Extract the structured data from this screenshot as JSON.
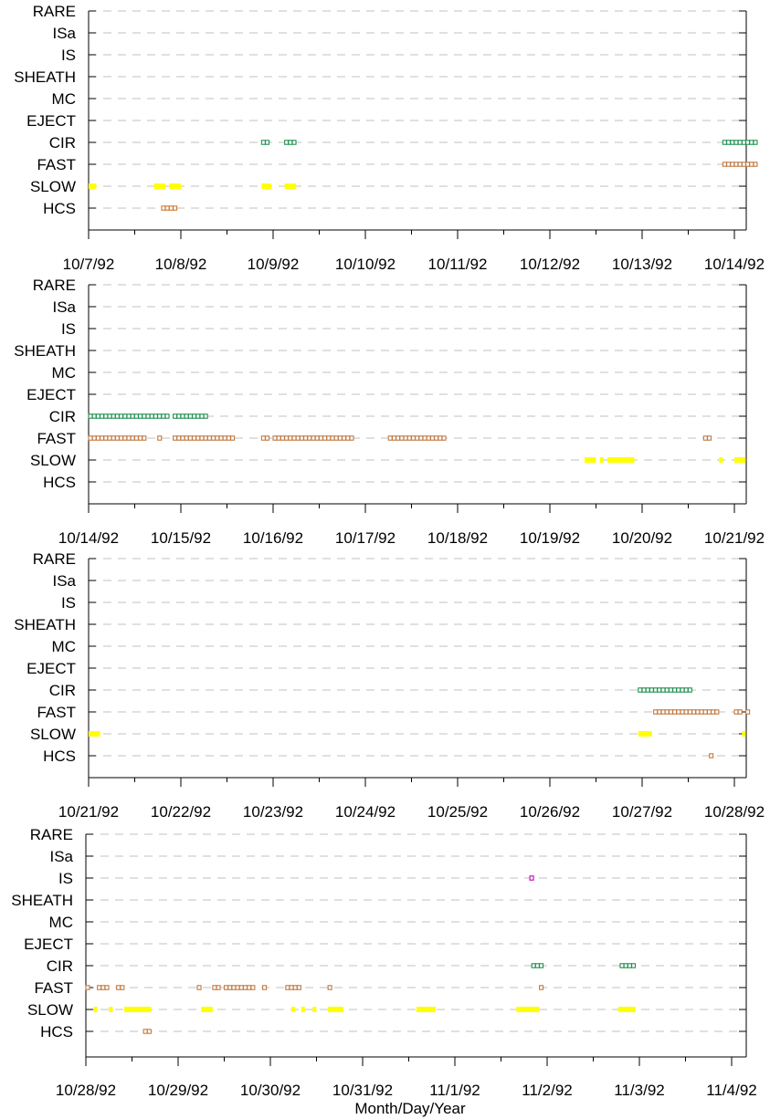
{
  "colors": {
    "SLOW": "#ffff00",
    "FAST": "#c07840",
    "CIR": "#209050",
    "HCS": "#d07830",
    "IS": "#c000c0",
    "grid": "#c0c0c0",
    "axis": "#000000"
  },
  "chart_data": [
    {
      "type": "scatter",
      "xlabel": "",
      "categories": [
        "RARE",
        "ISa",
        "IS",
        "SHEATH",
        "MC",
        "EJECT",
        "CIR",
        "FAST",
        "SLOW",
        "HCS"
      ],
      "x_range": [
        "10/7/92",
        "10/14/92 06:00"
      ],
      "x_ticks": [
        "10/7/92",
        "10/8/92",
        "10/9/92",
        "10/10/92",
        "10/11/92",
        "10/12/92",
        "10/13/92",
        "10/14/92"
      ],
      "grid": "horizontal dashed",
      "series": [
        {
          "category": "CIR",
          "style": "marker",
          "intervals": [
            [
              "10/8/92 21:00",
              "10/8/92 23:00"
            ],
            [
              "10/9/92 03:00",
              "10/9/92 05:30"
            ],
            [
              "10/13/92 21:00",
              "10/14/92 06:00"
            ]
          ]
        },
        {
          "category": "FAST",
          "style": "marker",
          "intervals": [
            [
              "10/13/92 21:00",
              "10/14/92 06:00"
            ]
          ]
        },
        {
          "category": "SLOW",
          "style": "bar",
          "intervals": [
            [
              "10/7/92 00:00",
              "10/7/92 02:00"
            ],
            [
              "10/7/92 17:00",
              "10/7/92 20:00"
            ],
            [
              "10/7/92 21:00",
              "10/8/92 00:00"
            ],
            [
              "10/8/92 21:00",
              "10/8/92 23:30"
            ],
            [
              "10/9/92 03:00",
              "10/9/92 06:00"
            ]
          ]
        },
        {
          "category": "HCS",
          "style": "marker",
          "intervals": [
            [
              "10/7/92 19:00",
              "10/7/92 22:30"
            ]
          ]
        }
      ]
    },
    {
      "type": "scatter",
      "xlabel": "",
      "categories": [
        "RARE",
        "ISa",
        "IS",
        "SHEATH",
        "MC",
        "EJECT",
        "CIR",
        "FAST",
        "SLOW",
        "HCS"
      ],
      "x_range": [
        "10/14/92",
        "10/21/92 04:00"
      ],
      "x_ticks": [
        "10/14/92",
        "10/15/92",
        "10/16/92",
        "10/17/92",
        "10/18/92",
        "10/19/92",
        "10/20/92",
        "10/21/92"
      ],
      "grid": "horizontal dashed",
      "series": [
        {
          "category": "CIR",
          "style": "marker",
          "intervals": [
            [
              "10/14/92 00:00",
              "10/14/92 21:00"
            ],
            [
              "10/14/92 22:00",
              "10/15/92 07:00"
            ]
          ]
        },
        {
          "category": "FAST",
          "style": "marker",
          "intervals": [
            [
              "10/14/92 00:00",
              "10/14/92 15:00"
            ],
            [
              "10/14/92 18:00",
              "10/14/92 19:00"
            ],
            [
              "10/14/92 22:00",
              "10/15/92 14:00"
            ],
            [
              "10/15/92 21:00",
              "10/15/92 23:00"
            ],
            [
              "10/16/92 00:00",
              "10/16/92 21:00"
            ],
            [
              "10/17/92 06:00",
              "10/17/92 21:00"
            ],
            [
              "10/20/92 16:00",
              "10/20/92 18:00"
            ]
          ]
        },
        {
          "category": "SLOW",
          "style": "bar",
          "intervals": [
            [
              "10/19/92 09:00",
              "10/19/92 12:00"
            ],
            [
              "10/19/92 13:00",
              "10/19/92 14:00"
            ],
            [
              "10/19/92 15:00",
              "10/19/92 22:00"
            ],
            [
              "10/20/92 20:00",
              "10/20/92 21:00"
            ],
            [
              "10/21/92 00:00",
              "10/21/92 03:00"
            ]
          ]
        }
      ]
    },
    {
      "type": "scatter",
      "xlabel": "",
      "categories": [
        "RARE",
        "ISa",
        "IS",
        "SHEATH",
        "MC",
        "EJECT",
        "CIR",
        "FAST",
        "SLOW",
        "HCS"
      ],
      "x_range": [
        "10/21/92",
        "10/28/92 04:00"
      ],
      "x_ticks": [
        "10/21/92",
        "10/22/92",
        "10/23/92",
        "10/24/92",
        "10/25/92",
        "10/26/92",
        "10/27/92",
        "10/28/92"
      ],
      "grid": "horizontal dashed",
      "series": [
        {
          "category": "CIR",
          "style": "marker",
          "intervals": [
            [
              "10/26/92 23:00",
              "10/27/92 13:00"
            ]
          ]
        },
        {
          "category": "FAST",
          "style": "marker",
          "intervals": [
            [
              "10/27/92 03:00",
              "10/27/92 20:00"
            ],
            [
              "10/28/92 00:00",
              "10/28/92 02:00"
            ],
            [
              "10/28/92 03:00",
              "10/28/92 04:00"
            ]
          ]
        },
        {
          "category": "SLOW",
          "style": "bar",
          "intervals": [
            [
              "10/21/92 00:00",
              "10/21/92 03:00"
            ],
            [
              "10/26/92 23:00",
              "10/27/92 02:30"
            ],
            [
              "10/28/92 02:00",
              "10/28/92 03:00"
            ]
          ]
        },
        {
          "category": "HCS",
          "style": "marker",
          "intervals": [
            [
              "10/27/92 17:30",
              "10/27/92 18:30"
            ]
          ]
        }
      ]
    },
    {
      "type": "scatter",
      "xlabel": "Month/Day/Year",
      "categories": [
        "RARE",
        "ISa",
        "IS",
        "SHEATH",
        "MC",
        "EJECT",
        "CIR",
        "FAST",
        "SLOW",
        "HCS"
      ],
      "x_range": [
        "10/28/92",
        "11/4/92 04:00"
      ],
      "x_ticks": [
        "10/28/92",
        "10/29/92",
        "10/30/92",
        "10/31/92",
        "11/1/92",
        "11/2/92",
        "11/3/92",
        "11/4/92"
      ],
      "grid": "horizontal dashed",
      "series": [
        {
          "category": "IS",
          "style": "marker",
          "intervals": [
            [
              "11/1/92 19:30",
              "11/1/92 20:30"
            ]
          ]
        },
        {
          "category": "CIR",
          "style": "marker",
          "intervals": [
            [
              "11/1/92 20:00",
              "11/1/92 23:00"
            ],
            [
              "11/2/92 19:00",
              "11/2/92 23:00"
            ]
          ]
        },
        {
          "category": "FAST",
          "style": "marker",
          "intervals": [
            [
              "10/28/92 00:00",
              "10/28/92 01:00"
            ],
            [
              "10/28/92 03:00",
              "10/28/92 06:00"
            ],
            [
              "10/28/92 08:00",
              "10/28/92 10:00"
            ],
            [
              "10/29/92 05:00",
              "10/29/92 06:00"
            ],
            [
              "10/29/92 09:00",
              "10/29/92 11:00"
            ],
            [
              "10/29/92 12:00",
              "10/29/92 20:00"
            ],
            [
              "10/29/92 22:00",
              "10/29/92 23:00"
            ],
            [
              "10/30/92 04:00",
              "10/30/92 08:00"
            ],
            [
              "10/30/92 15:00",
              "10/30/92 16:00"
            ],
            [
              "11/1/92 22:00",
              "11/1/92 23:00"
            ]
          ]
        },
        {
          "category": "SLOW",
          "style": "bar",
          "intervals": [
            [
              "10/28/92 02:00",
              "10/28/92 03:00"
            ],
            [
              "10/28/92 06:00",
              "10/28/92 07:00"
            ],
            [
              "10/28/92 10:00",
              "10/28/92 17:00"
            ],
            [
              "10/29/92 06:00",
              "10/29/92 09:00"
            ],
            [
              "10/30/92 05:30",
              "10/30/92 06:30"
            ],
            [
              "10/30/92 08:00",
              "10/30/92 09:00"
            ],
            [
              "10/30/92 11:00",
              "10/30/92 12:00"
            ],
            [
              "10/30/92 15:00",
              "10/30/92 19:00"
            ],
            [
              "10/31/92 14:00",
              "10/31/92 19:00"
            ],
            [
              "11/1/92 16:00",
              "11/1/92 22:00"
            ],
            [
              "11/2/92 18:30",
              "11/2/92 23:00"
            ]
          ]
        },
        {
          "category": "HCS",
          "style": "marker",
          "intervals": [
            [
              "10/28/92 15:00",
              "10/28/92 17:00"
            ]
          ]
        }
      ]
    }
  ]
}
